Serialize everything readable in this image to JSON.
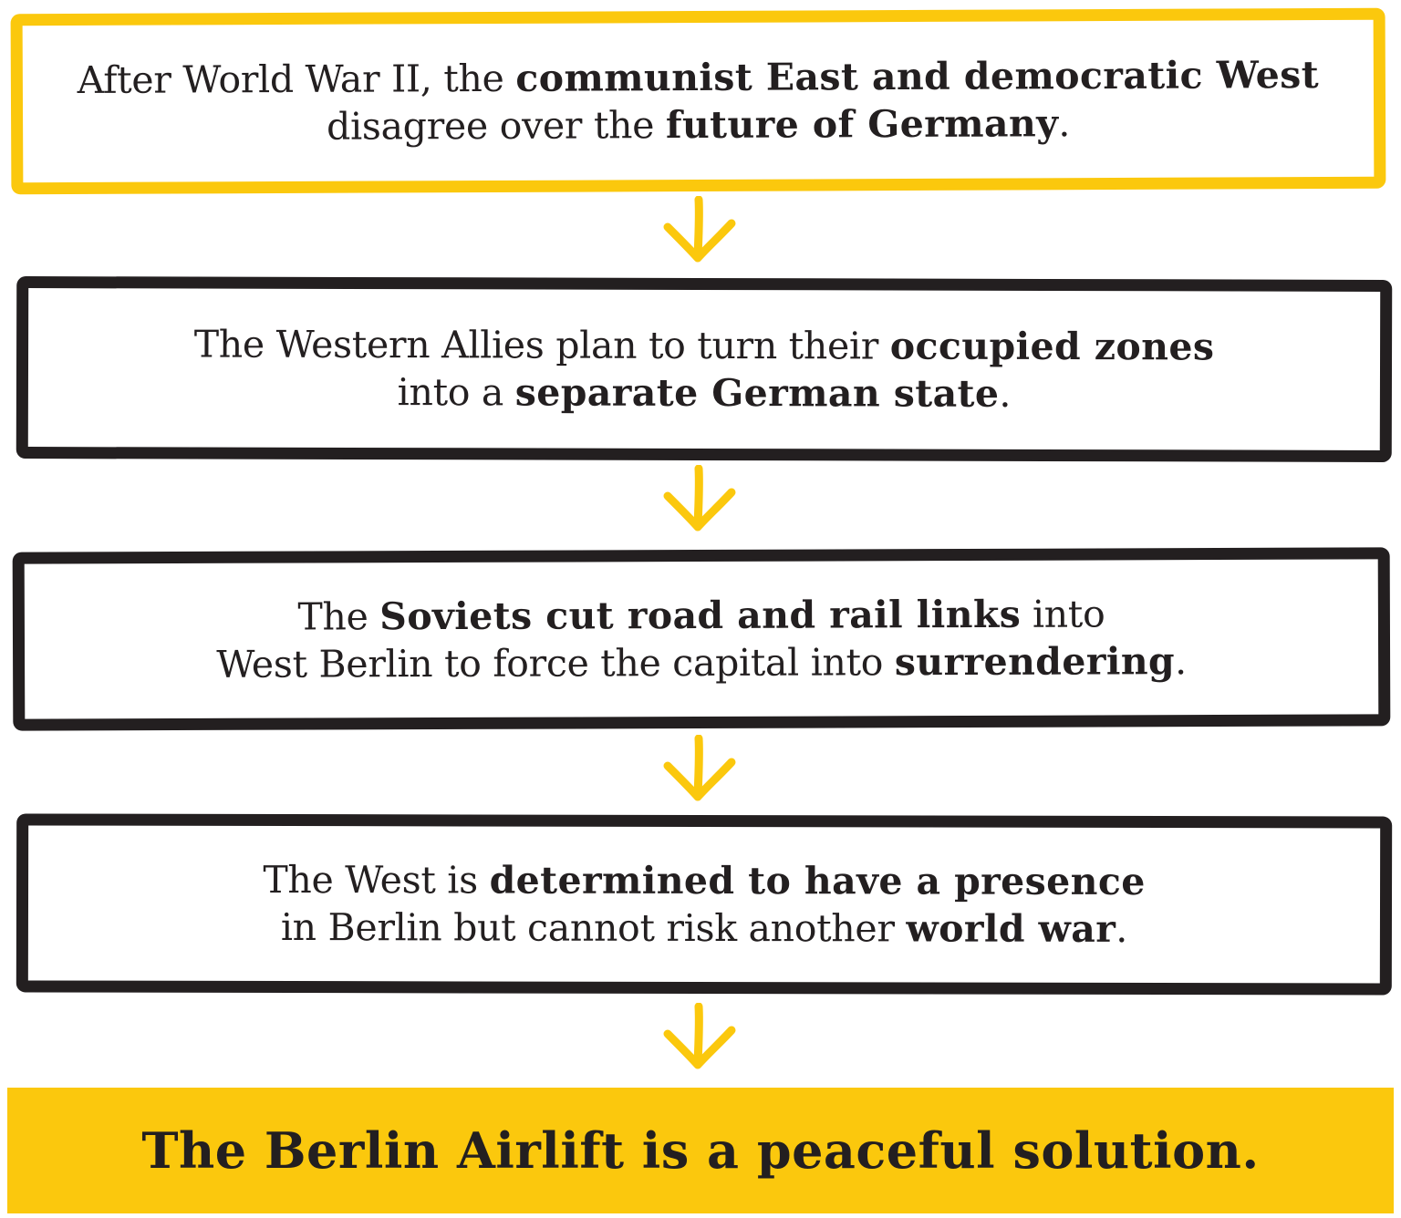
{
  "colors": {
    "accent_yellow": "#fbc80d",
    "ink": "#231f20",
    "background": "#ffffff"
  },
  "steps": [
    {
      "lines": [
        [
          {
            "t": "After World War II, the ",
            "b": false
          },
          {
            "t": "communist East and democratic West",
            "b": true
          }
        ],
        [
          {
            "t": "disagree over the ",
            "b": false
          },
          {
            "t": "future of Germany",
            "b": true
          },
          {
            "t": ".",
            "b": false
          }
        ]
      ]
    },
    {
      "lines": [
        [
          {
            "t": "The Western Allies plan to turn their ",
            "b": false
          },
          {
            "t": "occupied zones",
            "b": true
          }
        ],
        [
          {
            "t": "into a ",
            "b": false
          },
          {
            "t": "separate German state",
            "b": true
          },
          {
            "t": ".",
            "b": false
          }
        ]
      ]
    },
    {
      "lines": [
        [
          {
            "t": "The ",
            "b": false
          },
          {
            "t": "Soviets cut road and rail links",
            "b": true
          },
          {
            "t": " into",
            "b": false
          }
        ],
        [
          {
            "t": "West Berlin to force the capital into ",
            "b": false
          },
          {
            "t": "surrendering",
            "b": true
          },
          {
            "t": ".",
            "b": false
          }
        ]
      ]
    },
    {
      "lines": [
        [
          {
            "t": "The West is ",
            "b": false
          },
          {
            "t": "determined to have a presence",
            "b": true
          }
        ],
        [
          {
            "t": "in Berlin but cannot risk another ",
            "b": false
          },
          {
            "t": "world war",
            "b": true
          },
          {
            "t": ".",
            "b": false
          }
        ]
      ]
    }
  ],
  "arrows": [
    {
      "icon": "down-arrow-icon",
      "color": "#fbc80d"
    },
    {
      "icon": "down-arrow-icon",
      "color": "#fbc80d"
    },
    {
      "icon": "down-arrow-icon",
      "color": "#fbc80d"
    },
    {
      "icon": "down-arrow-icon",
      "color": "#fbc80d"
    }
  ],
  "conclusion": {
    "text": "The Berlin Airlift is a peaceful solution."
  }
}
